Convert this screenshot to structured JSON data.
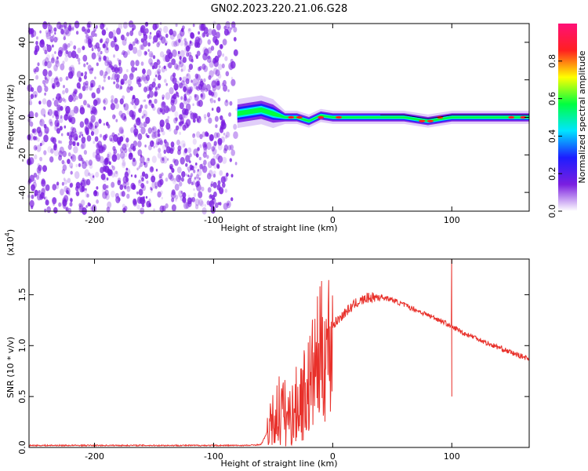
{
  "title": "GN02.2023.220.21.06.G28",
  "colors": {
    "snr_line": "#e8302a",
    "noise_cloud": "#7a1ee0",
    "frame": "#000000"
  },
  "chart_data": [
    {
      "type": "heatmap",
      "name": "spectrogram",
      "xlabel": "Height of straight line (km)",
      "ylabel": "Frequency (Hz)",
      "xlim": [
        -255,
        165
      ],
      "ylim": [
        -50,
        50
      ],
      "xticks": [
        -200,
        -100,
        0,
        100
      ],
      "yticks": [
        -40,
        -20,
        0,
        20,
        40
      ],
      "colorbar": {
        "label": "Normalized spectral amplitude",
        "range": [
          0.0,
          1.0
        ],
        "ticks": [
          "0.0",
          "0.2",
          "0.4",
          "0.6",
          "0.8"
        ],
        "tick_values": [
          0.0,
          0.2,
          0.4,
          0.6,
          0.8
        ],
        "colors": [
          "#ffffff",
          "#7a1ee0",
          "#1d1dff",
          "#00e5ff",
          "#00ff40",
          "#ffff00",
          "#ff2020",
          "#ff1077"
        ]
      },
      "noise_region_x": [
        -255,
        -80
      ],
      "signal_track": {
        "x": [
          -80,
          -70,
          -60,
          -50,
          -40,
          -30,
          -20,
          -10,
          0,
          20,
          40,
          60,
          80,
          100,
          120,
          140,
          165
        ],
        "frequency": [
          2,
          3,
          4,
          2,
          0,
          0,
          -2,
          1,
          0,
          0,
          0,
          0,
          -2,
          0,
          0,
          0,
          0
        ]
      }
    },
    {
      "type": "line",
      "name": "snr",
      "xlabel": "Height of straight line (km)",
      "ylabel": "SNR (10 * v/v)",
      "y_multiplier_label": "(x10",
      "y_multiplier_exp": "4",
      "y_multiplier_close": ")",
      "xlim": [
        -255,
        165
      ],
      "ylim": [
        0.0,
        1.85
      ],
      "xticks": [
        -200,
        -100,
        0,
        100
      ],
      "yticks": [
        0.0,
        0.5,
        1.0,
        1.5
      ],
      "ytick_labels": [
        "0.0",
        "0.5",
        "1.0",
        "1.5"
      ],
      "x": [
        -255,
        -200,
        -150,
        -100,
        -70,
        -60,
        -55,
        -50,
        -45,
        -40,
        -35,
        -30,
        -25,
        -20,
        -15,
        -10,
        -5,
        0,
        10,
        20,
        30,
        40,
        50,
        60,
        70,
        80,
        90,
        95,
        100,
        105,
        110,
        120,
        130,
        140,
        150,
        165
      ],
      "y": [
        0.02,
        0.02,
        0.02,
        0.02,
        0.02,
        0.03,
        0.15,
        0.3,
        0.45,
        0.4,
        0.35,
        0.5,
        0.6,
        0.7,
        0.9,
        1.05,
        1.15,
        1.2,
        1.32,
        1.42,
        1.47,
        1.48,
        1.45,
        1.4,
        1.35,
        1.3,
        1.25,
        1.22,
        1.18,
        1.16,
        1.12,
        1.08,
        1.02,
        0.98,
        0.93,
        0.87
      ],
      "spike": {
        "x": 100,
        "y_max": 1.85,
        "y_min": 0.5
      }
    }
  ]
}
